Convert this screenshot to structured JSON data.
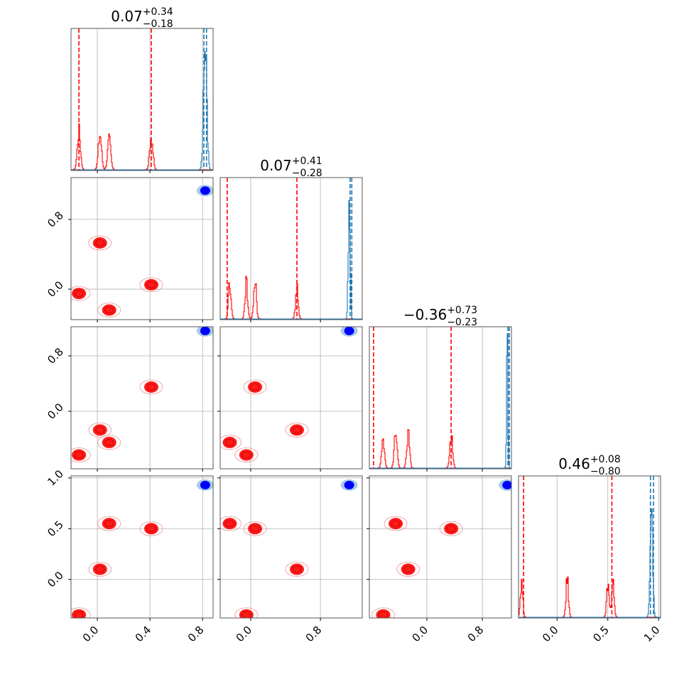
{
  "colors": {
    "accent": "#d62728",
    "red_primary": "#ff0000",
    "blue_primary": "#1f77b4",
    "blue_core": "#0000ff",
    "grid": "#b0b0b0",
    "frame": "#000000"
  },
  "chart_data": {
    "type": "corner",
    "n_params": 4,
    "grid": true,
    "ranges": [
      [
        -0.2,
        0.88
      ],
      [
        -0.35,
        1.28
      ],
      [
        -0.83,
        1.22
      ],
      [
        -0.38,
        1.02
      ]
    ],
    "ticks": [
      {
        "values": [
          0.0,
          0.4,
          0.8
        ],
        "labels": [
          "0.0",
          "0.4",
          "0.8"
        ]
      },
      {
        "values": [
          0.0,
          0.8
        ],
        "labels": [
          "0.0",
          "0.8"
        ]
      },
      {
        "values": [
          0.0,
          0.8
        ],
        "labels": [
          "0.0",
          "0.8"
        ]
      },
      {
        "values": [
          0.0,
          0.5,
          1.0
        ],
        "labels": [
          "0.0",
          "0.5",
          "1.0"
        ]
      }
    ],
    "titles": [
      {
        "median": "0.07",
        "plus": "+0.34",
        "minus": "−0.18"
      },
      {
        "median": "0.07",
        "plus": "+0.41",
        "minus": "−0.28"
      },
      {
        "median": "−0.36",
        "plus": "+0.73",
        "minus": "−0.23"
      },
      {
        "median": "0.46",
        "plus": "+0.08",
        "minus": "−0.80"
      }
    ],
    "series": [
      {
        "color": "#ff0000",
        "modes": [
          [
            -0.14,
            -0.05,
            -0.63,
            -0.35
          ],
          [
            0.02,
            0.53,
            -0.27,
            0.1
          ],
          [
            0.09,
            -0.24,
            -0.45,
            0.55
          ],
          [
            0.41,
            0.05,
            0.35,
            0.5
          ]
        ],
        "quantiles": [
          [
            -0.14,
            0.41
          ],
          [
            -0.27,
            0.53
          ],
          [
            -0.77,
            0.35
          ],
          [
            -0.33,
            0.54
          ]
        ]
      },
      {
        "color": "#1f77b4",
        "modes": [
          [
            0.82,
            1.13,
            1.16,
            0.93
          ]
        ],
        "quantiles": [
          [
            0.81,
            0.83
          ],
          [
            1.14,
            1.16
          ],
          [
            1.17,
            1.19
          ],
          [
            0.92,
            0.95
          ]
        ]
      }
    ]
  }
}
